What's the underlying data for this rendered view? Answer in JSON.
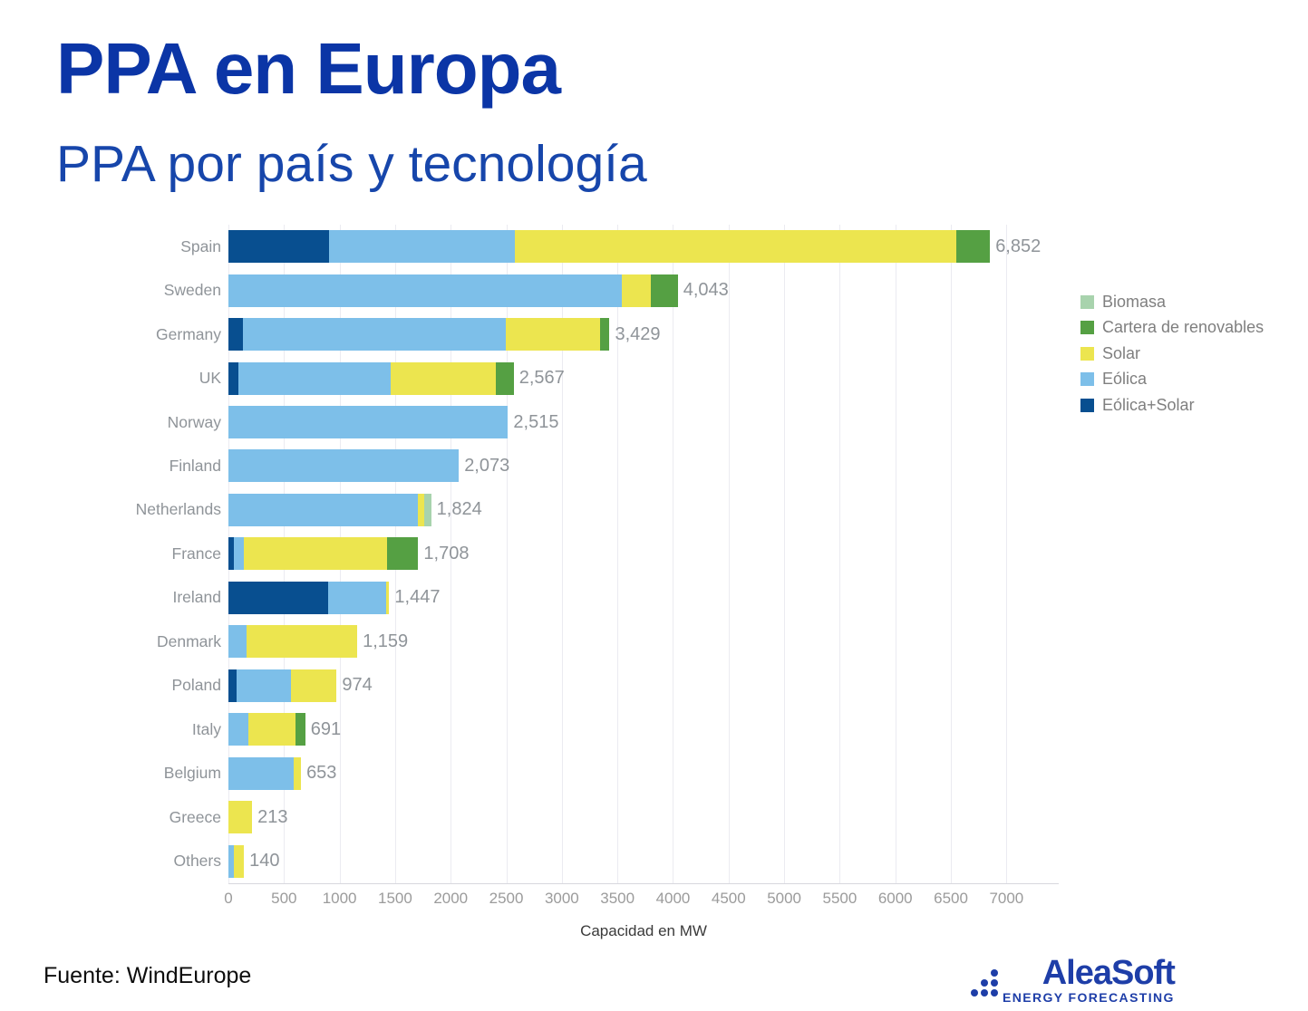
{
  "header": {
    "title": "PPA en Europa",
    "subtitle": "PPA por país y tecnología"
  },
  "footer": {
    "source": "Fuente: WindEurope",
    "logo_text": "AleaSoft",
    "logo_tagline": "ENERGY FORECASTING",
    "logo_color": "#1e3ea8"
  },
  "chart_data": {
    "type": "bar",
    "orientation": "horizontal-stacked",
    "title": "PPA en Europa",
    "subtitle": "PPA por país y tecnología",
    "xlabel": "Capacidad en MW",
    "xlim": [
      0,
      7470
    ],
    "xticks": [
      0,
      500,
      1000,
      1500,
      2000,
      2500,
      3000,
      3500,
      4000,
      4500,
      5000,
      5500,
      6000,
      6500,
      7000
    ],
    "grid": "vertical, light gray",
    "legend_position": "right",
    "legend": [
      {
        "key": "biomasa",
        "label": "Biomasa",
        "color": "#a8d3ad"
      },
      {
        "key": "cartera",
        "label": "Cartera de renovables",
        "color": "#55a043"
      },
      {
        "key": "solar",
        "label": "Solar",
        "color": "#ece54f"
      },
      {
        "key": "eolica",
        "label": "Eólica",
        "color": "#7dbfe9"
      },
      {
        "key": "eolica_solar",
        "label": "Eólica+Solar",
        "color": "#084f90"
      }
    ],
    "stack_order": [
      "eolica_solar",
      "eolica",
      "solar",
      "cartera",
      "biomasa"
    ],
    "colors": {
      "biomasa": "#a8d3ad",
      "cartera": "#55a043",
      "solar": "#ece54f",
      "eolica": "#7dbfe9",
      "eolica_solar": "#084f90"
    },
    "rows": [
      {
        "country": "Spain",
        "total_label": "6,852",
        "total": 6852,
        "segments": {
          "eolica_solar": 905,
          "eolica": 1672,
          "solar": 3973,
          "cartera": 302
        }
      },
      {
        "country": "Sweden",
        "total_label": "4,043",
        "total": 4043,
        "segments": {
          "eolica": 3540,
          "solar": 263,
          "cartera": 240
        }
      },
      {
        "country": "Germany",
        "total_label": "3,429",
        "total": 3429,
        "segments": {
          "eolica_solar": 130,
          "eolica": 2366,
          "solar": 848,
          "cartera": 85
        }
      },
      {
        "country": "UK",
        "total_label": "2,567",
        "total": 2567,
        "segments": {
          "eolica_solar": 90,
          "eolica": 1370,
          "solar": 946,
          "cartera": 161
        }
      },
      {
        "country": "Norway",
        "total_label": "2,515",
        "total": 2515,
        "segments": {
          "eolica": 2515
        }
      },
      {
        "country": "Finland",
        "total_label": "2,073",
        "total": 2073,
        "segments": {
          "eolica": 2073
        }
      },
      {
        "country": "Netherlands",
        "total_label": "1,824",
        "total": 1824,
        "segments": {
          "eolica": 1705,
          "solar": 57,
          "biomasa": 62
        }
      },
      {
        "country": "France",
        "total_label": "1,708",
        "total": 1708,
        "segments": {
          "eolica_solar": 50,
          "eolica": 89,
          "solar": 1288,
          "cartera": 281
        }
      },
      {
        "country": "Ireland",
        "total_label": "1,447",
        "total": 1447,
        "segments": {
          "eolica_solar": 900,
          "eolica": 520,
          "solar": 27
        }
      },
      {
        "country": "Denmark",
        "total_label": "1,159",
        "total": 1159,
        "segments": {
          "eolica": 163,
          "solar": 996
        }
      },
      {
        "country": "Poland",
        "total_label": "974",
        "total": 974,
        "segments": {
          "eolica_solar": 75,
          "eolica": 488,
          "solar": 411
        }
      },
      {
        "country": "Italy",
        "total_label": "691",
        "total": 691,
        "segments": {
          "eolica": 180,
          "solar": 420,
          "cartera": 91
        }
      },
      {
        "country": "Belgium",
        "total_label": "653",
        "total": 653,
        "segments": {
          "eolica": 590,
          "solar": 63
        }
      },
      {
        "country": "Greece",
        "total_label": "213",
        "total": 213,
        "segments": {
          "solar": 213
        }
      },
      {
        "country": "Others",
        "total_label": "140",
        "total": 140,
        "segments": {
          "eolica": 50,
          "solar": 90
        }
      }
    ]
  }
}
